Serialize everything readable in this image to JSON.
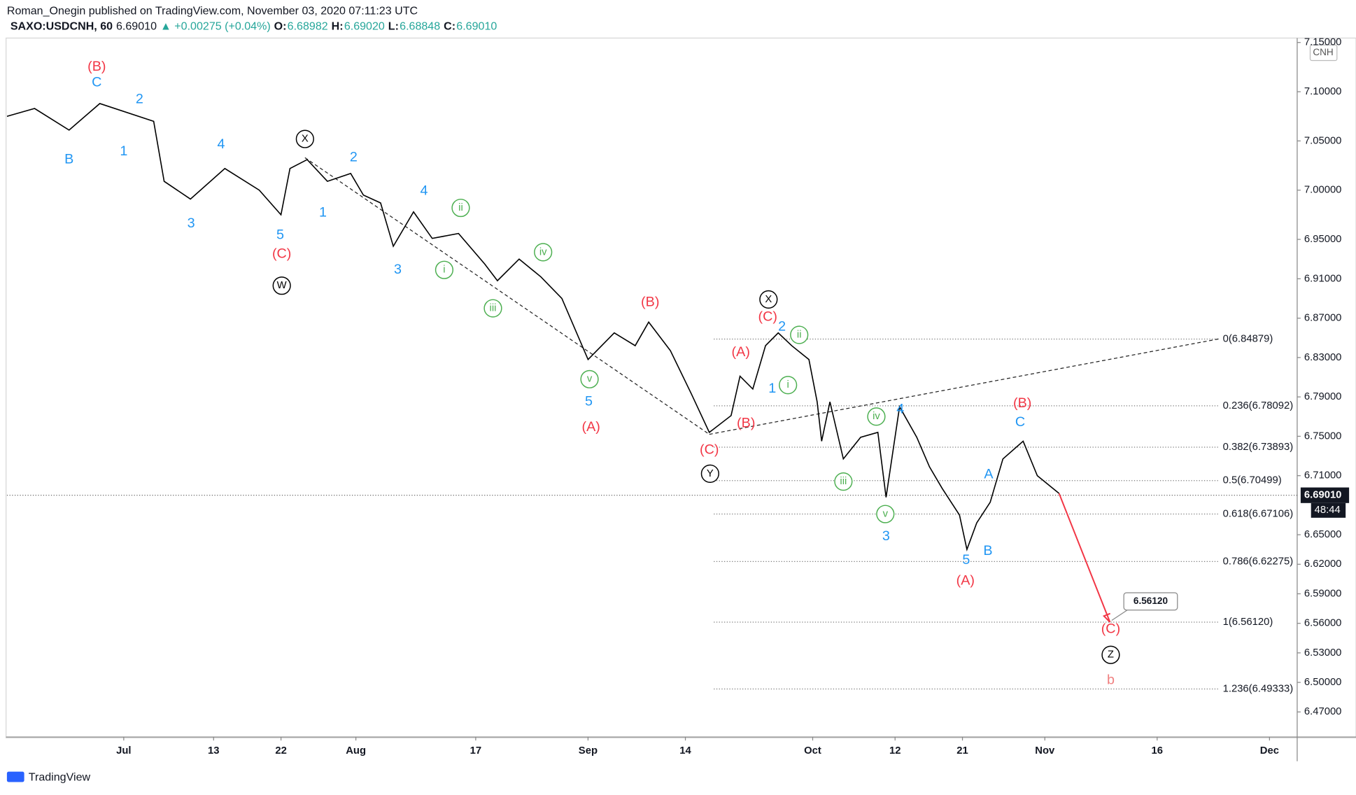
{
  "header": {
    "title": "Roman_Onegin published on TradingView.com, November 03, 2020 07:11:23 UTC",
    "symbol": "SAXO:USDCNH, 60",
    "price": "6.69010",
    "change": "▲ +0.00275 (+0.04%)",
    "ohlc": [
      {
        "k": "O:",
        "v": "6.68982"
      },
      {
        "k": "H:",
        "v": "6.69020"
      },
      {
        "k": "L:",
        "v": "6.68848"
      },
      {
        "k": "C:",
        "v": "6.69010"
      }
    ],
    "currency": "CNH",
    "logo": "TradingView"
  },
  "chart_data": {
    "type": "line",
    "color": "#000000",
    "x": [
      -15.6,
      -11.9,
      -7.3,
      -3.2,
      4.0,
      5.4,
      8.9,
      13.5,
      18.1,
      21.0,
      22.2,
      24.5,
      27.2,
      30.3,
      32.0,
      34.3,
      36.0,
      38.7,
      41.2,
      44.7,
      48.2,
      49.9,
      52.8,
      55.7,
      58.5,
      62.0,
      65.5,
      68.3,
      70.1,
      73.0,
      75.8,
      78.2,
      81.1,
      82.3,
      84.0,
      85.7,
      87.4,
      89.2,
      91.5,
      92.6,
      93.2,
      94.3,
      96.1,
      98.4,
      100.7,
      101.8,
      103.6,
      105.9,
      107.6,
      109.3,
      111.6,
      112.6,
      113.9,
      115.7,
      117.4,
      120.1,
      122.0,
      124.9
    ],
    "values": [
      7.075,
      7.083,
      7.061,
      7.088,
      7.07,
      7.009,
      6.991,
      7.022,
      7.0,
      6.975,
      7.022,
      7.031,
      7.009,
      7.017,
      6.995,
      6.987,
      6.943,
      6.978,
      6.951,
      6.956,
      6.925,
      6.908,
      6.93,
      6.912,
      6.89,
      6.828,
      6.855,
      6.842,
      6.866,
      6.837,
      6.793,
      6.754,
      6.771,
      6.811,
      6.798,
      6.842,
      6.855,
      6.842,
      6.828,
      6.785,
      6.745,
      6.785,
      6.727,
      6.749,
      6.754,
      6.688,
      6.78,
      6.749,
      6.719,
      6.697,
      6.67,
      6.635,
      6.662,
      6.683,
      6.727,
      6.745,
      6.71,
      6.692
    ],
    "xlim": [
      -15.6,
      156.7
    ],
    "ylim": [
      6.4445,
      7.1545
    ],
    "xticks": [
      {
        "value": 0,
        "label": "Jul"
      },
      {
        "value": 12,
        "label": "13"
      },
      {
        "value": 21,
        "label": "22"
      },
      {
        "value": 31,
        "label": "Aug"
      },
      {
        "value": 47,
        "label": "17"
      },
      {
        "value": 62,
        "label": "Sep"
      },
      {
        "value": 75,
        "label": "14"
      },
      {
        "value": 92,
        "label": "Oct"
      },
      {
        "value": 103,
        "label": "12"
      },
      {
        "value": 112,
        "label": "21"
      },
      {
        "value": 123,
        "label": "Nov"
      },
      {
        "value": 138,
        "label": "16"
      },
      {
        "value": 153,
        "label": "Dec"
      }
    ],
    "yticks": [
      {
        "value": 7.15,
        "label": "7.15000"
      },
      {
        "value": 7.1,
        "label": "7.10000"
      },
      {
        "value": 7.05,
        "label": "7.05000"
      },
      {
        "value": 7.0,
        "label": "7.00000"
      },
      {
        "value": 6.95,
        "label": "6.95000"
      },
      {
        "value": 6.91,
        "label": "6.91000"
      },
      {
        "value": 6.87,
        "label": "6.87000"
      },
      {
        "value": 6.83,
        "label": "6.83000"
      },
      {
        "value": 6.79,
        "label": "6.79000"
      },
      {
        "value": 6.75,
        "label": "6.75000"
      },
      {
        "value": 6.71,
        "label": "6.71000"
      },
      {
        "value": 6.65,
        "label": "6.65000"
      },
      {
        "value": 6.62,
        "label": "6.62000"
      },
      {
        "value": 6.59,
        "label": "6.59000"
      },
      {
        "value": 6.56,
        "label": "6.56000"
      },
      {
        "value": 6.53,
        "label": "6.53000"
      },
      {
        "value": 6.5,
        "label": "6.50000"
      },
      {
        "value": 6.47,
        "label": "6.47000"
      }
    ],
    "last_price": {
      "value": 6.6901,
      "label": "6.69010"
    },
    "countdown": "48:44",
    "fib_range": [
      78.8,
      146.3
    ],
    "fib_levels": [
      {
        "value": 6.84879,
        "label": "0(6.84879)"
      },
      {
        "value": 6.78092,
        "label": "0.236(6.78092)"
      },
      {
        "value": 6.73893,
        "label": "0.382(6.73893)"
      },
      {
        "value": 6.70499,
        "label": "0.5(6.70499)"
      },
      {
        "value": 6.67106,
        "label": "0.618(6.67106)"
      },
      {
        "value": 6.62275,
        "label": "0.786(6.62275)"
      },
      {
        "value": 6.5612,
        "label": "1(6.56120)"
      },
      {
        "value": 6.49333,
        "label": "1.236(6.49333)"
      }
    ],
    "trendlines": [
      {
        "x": [
          24.2,
          78.2
        ],
        "y": [
          7.033,
          6.752
        ]
      },
      {
        "x": [
          78.2,
          146.3
        ],
        "y": [
          6.752,
          6.849
        ]
      }
    ],
    "target": {
      "x": 131.7,
      "value": 6.5612,
      "label": "6.56120",
      "color": "#f23645"
    },
    "annotations": [
      {
        "text": "(B)",
        "color": "#f23645",
        "x": -3.6,
        "y": 7.125
      },
      {
        "text": "C",
        "color": "#2196f3",
        "x": -3.6,
        "y": 7.109
      },
      {
        "text": "2",
        "color": "#2196f3",
        "x": 2.1,
        "y": 7.092
      },
      {
        "text": "B",
        "color": "#2196f3",
        "x": -7.3,
        "y": 7.031
      },
      {
        "text": "1",
        "color": "#2196f3",
        "x": 0,
        "y": 7.039
      },
      {
        "text": "4",
        "color": "#2196f3",
        "x": 13.0,
        "y": 7.046
      },
      {
        "text": "3",
        "color": "#2196f3",
        "x": 9.0,
        "y": 6.966
      },
      {
        "text": "X",
        "color": "#000000",
        "x": 24.2,
        "y": 7.052,
        "circled": true
      },
      {
        "text": "2",
        "color": "#2196f3",
        "x": 30.7,
        "y": 7.033
      },
      {
        "text": "1",
        "color": "#2196f3",
        "x": 26.6,
        "y": 6.977
      },
      {
        "text": "5",
        "color": "#2196f3",
        "x": 20.9,
        "y": 6.954
      },
      {
        "text": "(C)",
        "color": "#f23645",
        "x": 21.1,
        "y": 6.935
      },
      {
        "text": "W",
        "color": "#000000",
        "x": 21.1,
        "y": 6.903,
        "circled": true
      },
      {
        "text": "4",
        "color": "#2196f3",
        "x": 40.1,
        "y": 6.999
      },
      {
        "text": "3",
        "color": "#2196f3",
        "x": 36.6,
        "y": 6.919
      },
      {
        "text": "ii",
        "color": "#4caf50",
        "x": 45.0,
        "y": 6.982,
        "circled": true
      },
      {
        "text": "i",
        "color": "#4caf50",
        "x": 42.8,
        "y": 6.919,
        "circled": true
      },
      {
        "text": "iv",
        "color": "#4caf50",
        "x": 56.0,
        "y": 6.937,
        "circled": true
      },
      {
        "text": "iii",
        "color": "#4caf50",
        "x": 49.3,
        "y": 6.88,
        "circled": true
      },
      {
        "text": "v",
        "color": "#4caf50",
        "x": 62.2,
        "y": 6.808,
        "circled": true
      },
      {
        "text": "5",
        "color": "#2196f3",
        "x": 62.1,
        "y": 6.785
      },
      {
        "text": "(A)",
        "color": "#f23645",
        "x": 62.4,
        "y": 6.759
      },
      {
        "text": "(B)",
        "color": "#f23645",
        "x": 70.3,
        "y": 6.886
      },
      {
        "text": "X",
        "color": "#000000",
        "x": 86.1,
        "y": 6.889,
        "circled": true
      },
      {
        "text": "(C)",
        "color": "#f23645",
        "x": 86.0,
        "y": 6.871
      },
      {
        "text": "2",
        "color": "#2196f3",
        "x": 87.9,
        "y": 6.861
      },
      {
        "text": "ii",
        "color": "#4caf50",
        "x": 90.2,
        "y": 6.853,
        "circled": true
      },
      {
        "text": "(A)",
        "color": "#f23645",
        "x": 82.4,
        "y": 6.835
      },
      {
        "text": "1",
        "color": "#2196f3",
        "x": 86.6,
        "y": 6.798
      },
      {
        "text": "i",
        "color": "#4caf50",
        "x": 88.7,
        "y": 6.802,
        "circled": true
      },
      {
        "text": "(B)",
        "color": "#f23645",
        "x": 83.1,
        "y": 6.763
      },
      {
        "text": "(C)",
        "color": "#f23645",
        "x": 78.2,
        "y": 6.736
      },
      {
        "text": "Y",
        "color": "#000000",
        "x": 78.3,
        "y": 6.712,
        "circled": true
      },
      {
        "text": "iv",
        "color": "#4caf50",
        "x": 100.5,
        "y": 6.77,
        "circled": true
      },
      {
        "text": "4",
        "color": "#2196f3",
        "x": 103.7,
        "y": 6.777
      },
      {
        "text": "iii",
        "color": "#4caf50",
        "x": 96.1,
        "y": 6.704,
        "circled": true
      },
      {
        "text": "v",
        "color": "#4caf50",
        "x": 101.7,
        "y": 6.671,
        "circled": true
      },
      {
        "text": "3",
        "color": "#2196f3",
        "x": 101.8,
        "y": 6.648
      },
      {
        "text": "A",
        "color": "#2196f3",
        "x": 115.5,
        "y": 6.711
      },
      {
        "text": "B",
        "color": "#2196f3",
        "x": 115.4,
        "y": 6.633
      },
      {
        "text": "5",
        "color": "#2196f3",
        "x": 112.5,
        "y": 6.624
      },
      {
        "text": "(A)",
        "color": "#f23645",
        "x": 112.4,
        "y": 6.603
      },
      {
        "text": "(B)",
        "color": "#f23645",
        "x": 120.0,
        "y": 6.783
      },
      {
        "text": "C",
        "color": "#2196f3",
        "x": 119.7,
        "y": 6.764
      },
      {
        "text": "(C)",
        "color": "#f23645",
        "x": 131.8,
        "y": 6.554
      },
      {
        "text": "Z",
        "color": "#000000",
        "x": 131.8,
        "y": 6.528,
        "circled": true
      },
      {
        "text": "b",
        "color": "#f08080",
        "x": 131.8,
        "y": 6.502
      }
    ]
  }
}
